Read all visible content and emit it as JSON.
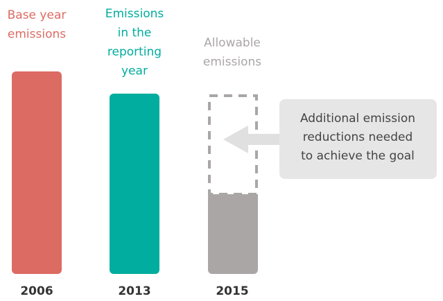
{
  "columns": [
    {
      "label": [
        "Base year",
        "emissions"
      ],
      "year": "2006"
    },
    {
      "label": [
        "Emissions",
        "in the",
        "reporting",
        "year"
      ],
      "year": "2013"
    },
    {
      "label": [
        "Allowable",
        "emissions"
      ],
      "year": "2015"
    }
  ],
  "callout": [
    "Additional emission",
    "reductions needed",
    "to achieve the goal"
  ]
}
